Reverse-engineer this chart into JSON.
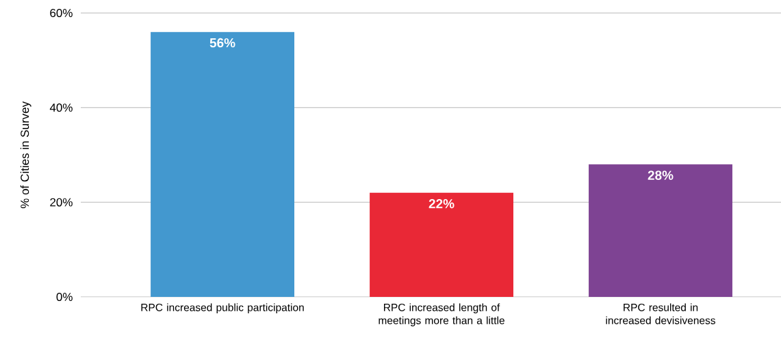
{
  "chart_data": {
    "type": "bar",
    "ylabel": "% of Cities in Survey",
    "categories": [
      "RPC increased public participation",
      "RPC increased length of meetings more than a little",
      "RPC resulted in increased devisiveness"
    ],
    "values": [
      56,
      22,
      28
    ],
    "colors": [
      "#4398cf",
      "#e92836",
      "#7e4393"
    ],
    "value_labels": [
      "56%",
      "22%",
      "28%"
    ],
    "ylim": [
      0,
      60
    ],
    "yticks": [
      {
        "value": 0,
        "label": "0%"
      },
      {
        "value": 20,
        "label": "20%"
      },
      {
        "value": 40,
        "label": "40%"
      },
      {
        "value": 60,
        "label": "60%"
      }
    ],
    "grid": "y"
  }
}
